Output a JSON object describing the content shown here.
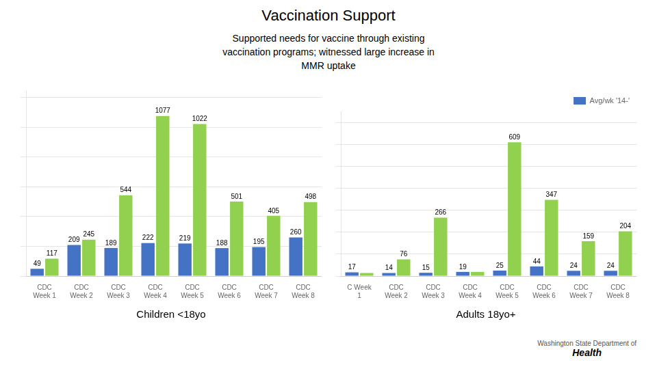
{
  "title": "Vaccination Support",
  "subtitle": [
    "Supported needs for vaccine through existing",
    "vaccination programs; witnessed large increase in",
    "MMR uptake"
  ],
  "annotations": [
    "Washington State Department of",
    "Health"
  ],
  "chart_data": [
    {
      "type": "bar",
      "title": "Children <18yo",
      "categories": [
        "CDC\nWeek 1",
        "CDC\nWeek 2",
        "CDC\nWeek 3",
        "CDC\nWeek 4",
        "CDC\nWeek 5",
        "CDC\nWeek 6",
        "CDC\nWeek 7",
        "CDC\nWeek 8"
      ],
      "series": [
        {
          "color": "#4472C4",
          "values": [
            49,
            209,
            189,
            222,
            219,
            188,
            195,
            260
          ]
        },
        {
          "color": "#92D050",
          "values": [
            117,
            245,
            544,
            1077,
            1022,
            501,
            405,
            498
          ]
        }
      ],
      "ylim": [
        0,
        1250
      ],
      "yticks": [
        0,
        200,
        400,
        600,
        800,
        1000,
        1200
      ],
      "grid": true,
      "data_labels": true,
      "tick_labels": "x"
    },
    {
      "type": "bar",
      "title": "Adults 18yo+",
      "categories": [
        "C Week\n1",
        "CDC\nWeek 2",
        "CDC\nWeek 3",
        "CDC\nWeek 4",
        "CDC\nWeek 5",
        "CDC\nWeek 6",
        "CDC\nWeek 7",
        "CDC\nWeek 8"
      ],
      "series": [
        {
          "name": "Avg/wk '14-'",
          "color": "#4472C4",
          "values": [
            17,
            14,
            15,
            19,
            25,
            44,
            24,
            24
          ]
        },
        {
          "color": "#92D050",
          "values": [
            14,
            76,
            266,
            19,
            609,
            347,
            159,
            204
          ],
          "value_labels": [
            null,
            "76",
            "266",
            null,
            "609",
            "347",
            "159",
            "204"
          ]
        }
      ],
      "ylim": [
        0,
        750
      ],
      "yticks": [
        0,
        100,
        200,
        300,
        400,
        500,
        600,
        700
      ],
      "grid": true,
      "data_labels": true,
      "tick_labels": "x",
      "legend": "upper right"
    }
  ]
}
